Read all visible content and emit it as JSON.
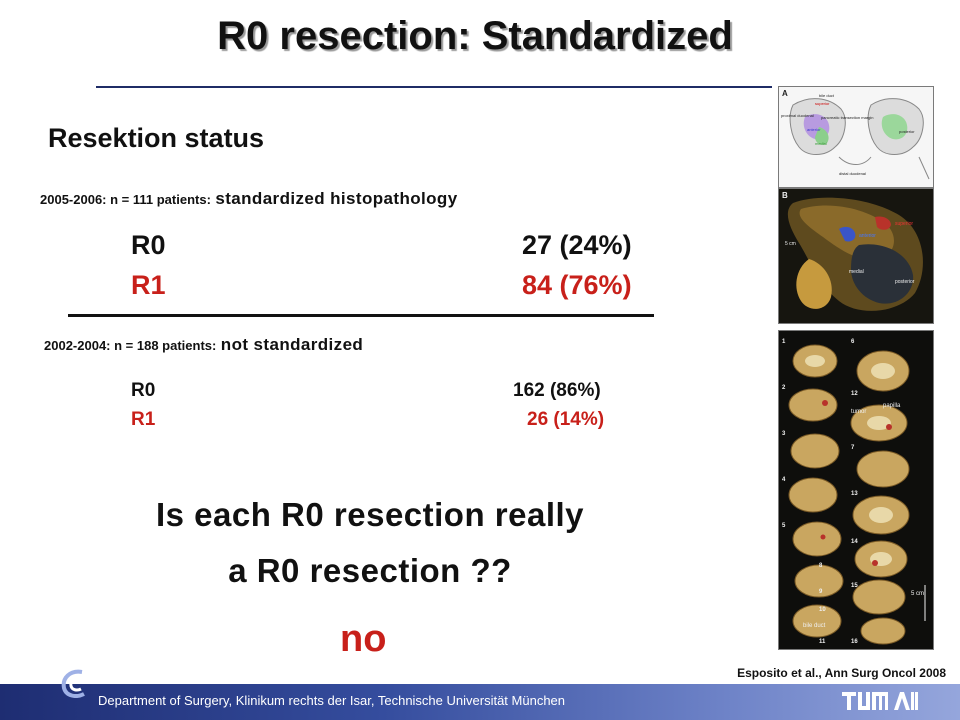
{
  "title": "R0 resection: Standardized",
  "section_heading": "Resektion status",
  "group_standardized": {
    "period": "2005-2006: n = 111 patients:",
    "method": "standardized histopathology",
    "r0_label": "R0",
    "r0_value": "27 (24%)",
    "r1_label": "R1",
    "r1_value": "84 (76%)"
  },
  "group_not_standardized": {
    "period": "2002-2004: n = 188 patients:",
    "method": "not standardized",
    "r0_label": "R0",
    "r0_value": "162 (86%)",
    "r1_label": "R1",
    "r1_value": "26 (14%)"
  },
  "question_line1": "Is each R0 resection really",
  "question_line2": "a R0 resection ??",
  "answer": "no",
  "citation": "Esposito et al., Ann Surg Oncol 2008",
  "figure_a": {
    "panel": "A",
    "labels": [
      "bile duct",
      "superior",
      "proximal duodenal",
      "pancreatic transection margin",
      "anterior",
      "medial",
      "posterior",
      "distal duodenal"
    ]
  },
  "figure_b": {
    "panel": "B",
    "labels": [
      "superior",
      "anterior",
      "5 cm",
      "medial",
      "posterior"
    ]
  },
  "figure_c": {
    "labels": [
      "tumor",
      "papilla",
      "bile duct",
      "5 cm"
    ],
    "slice_numbers": [
      "1",
      "2",
      "3",
      "4",
      "5",
      "6",
      "7",
      "8",
      "9",
      "10",
      "11",
      "12",
      "13",
      "14",
      "15",
      "16"
    ]
  },
  "footer": {
    "department": "Department of Surgery, Klinikum rechts der Isar, Technische Universität München",
    "logo_right": "TUM MRI"
  },
  "colors": {
    "accent_red": "#c8201a",
    "footer_blue": "#1e2d72",
    "rule_blue": "#1f2c66"
  }
}
